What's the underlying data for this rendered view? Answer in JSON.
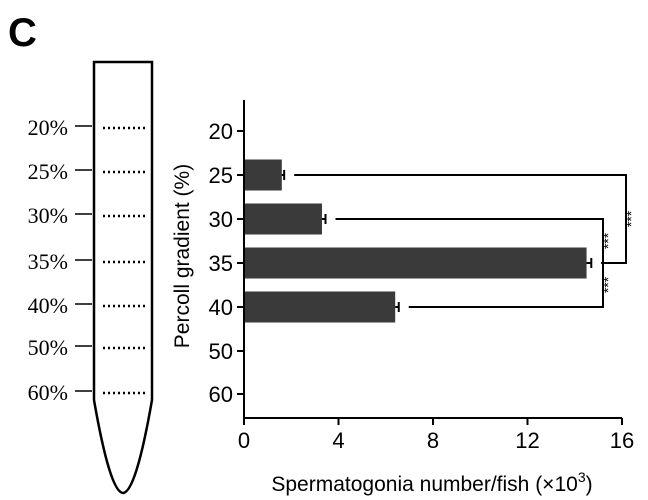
{
  "panel_label": "C",
  "tube": {
    "gradient_labels": [
      "20%",
      "25%",
      "30%",
      "35%",
      "40%",
      "50%",
      "60%"
    ]
  },
  "chart_data": {
    "type": "bar",
    "orientation": "horizontal",
    "categories": [
      "20",
      "25",
      "30",
      "35",
      "40",
      "50",
      "60"
    ],
    "values": [
      0,
      1.6,
      3.3,
      14.5,
      6.4,
      0,
      0
    ],
    "errors": [
      0,
      0.1,
      0.15,
      0.2,
      0.15,
      0,
      0
    ],
    "xlabel": "Spermatogonia number/fish (×10",
    "xlabel_sup": "3",
    "xlabel_end": ")",
    "ylabel": "Percoll gradient (%)",
    "xlim": [
      0,
      16
    ],
    "xticks": [
      "0",
      "4",
      "8",
      "12",
      "16"
    ],
    "grid": false,
    "bar_color": "#3a3a3a",
    "significance": [
      {
        "from": "30",
        "to": "35",
        "label": "***"
      },
      {
        "from": "35",
        "to": "40",
        "label": "***"
      },
      {
        "from": "25",
        "to": "35",
        "label": "***"
      }
    ]
  }
}
